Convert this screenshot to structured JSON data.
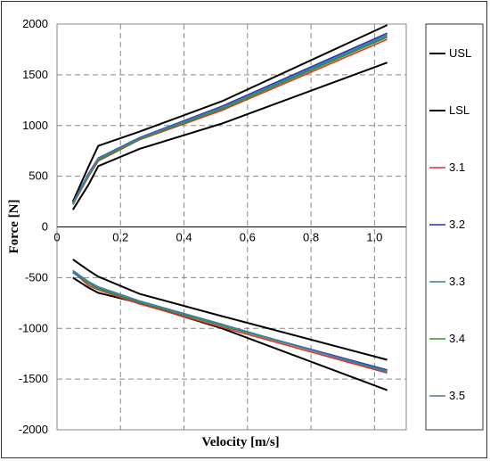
{
  "chart_data": {
    "type": "line",
    "title": "",
    "xlabel": "Velocity [m/s]",
    "ylabel": "Force [N]",
    "xlim": [
      0,
      1.1
    ],
    "ylim": [
      -2000,
      2000
    ],
    "x_ticks": [
      "0",
      "0.2",
      "0.4",
      "0.6",
      "0.8",
      "1.0"
    ],
    "x_tick_values": [
      0,
      0.2,
      0.4,
      0.6,
      0.8,
      1.0
    ],
    "y_ticks": [
      "2000",
      "1500",
      "1000",
      "500",
      "0",
      "-500",
      "-1000",
      "-1500",
      "-2000"
    ],
    "y_tick_values": [
      2000,
      1500,
      1000,
      500,
      0,
      -500,
      -1000,
      -1500,
      -2000
    ],
    "grid": "dashed",
    "legend_position": "right",
    "series": [
      {
        "name": "USL",
        "color": "#000000",
        "rebound": {
          "x": [
            0.05,
            0.1,
            0.13,
            0.26,
            0.52,
            1.04
          ],
          "y": [
            250,
            600,
            800,
            940,
            1240,
            1990
          ]
        },
        "compression": {
          "x": [
            0.05,
            0.1,
            0.13,
            0.26,
            0.52,
            1.04
          ],
          "y": [
            -500,
            -600,
            -650,
            -750,
            -1000,
            -1610
          ]
        }
      },
      {
        "name": "LSL",
        "color": "#000000",
        "rebound": {
          "x": [
            0.05,
            0.1,
            0.13,
            0.26,
            0.52,
            1.04
          ],
          "y": [
            170,
            420,
            600,
            770,
            1020,
            1620
          ]
        },
        "compression": {
          "x": [
            0.05,
            0.1,
            0.13,
            0.26,
            0.52,
            1.04
          ],
          "y": [
            -320,
            -430,
            -490,
            -660,
            -880,
            -1310
          ]
        }
      },
      {
        "name": "3.1",
        "color": "#e03030",
        "rebound": {
          "x": [
            0.05,
            0.1,
            0.13,
            0.26,
            0.52,
            1.04
          ],
          "y": [
            220,
            500,
            650,
            860,
            1150,
            1850
          ]
        },
        "compression": {
          "x": [
            0.05,
            0.1,
            0.13,
            0.26,
            0.52,
            1.04
          ],
          "y": [
            -440,
            -580,
            -620,
            -760,
            -990,
            -1440
          ]
        }
      },
      {
        "name": "3.2",
        "color": "#2030c0",
        "rebound": {
          "x": [
            0.05,
            0.1,
            0.13,
            0.26,
            0.52,
            1.04
          ],
          "y": [
            240,
            530,
            680,
            880,
            1190,
            1910
          ]
        },
        "compression": {
          "x": [
            0.05,
            0.1,
            0.13,
            0.26,
            0.52,
            1.04
          ],
          "y": [
            -450,
            -550,
            -600,
            -740,
            -970,
            -1410
          ]
        }
      },
      {
        "name": "3.3",
        "color": "#2a8a8a",
        "rebound": {
          "x": [
            0.05,
            0.1,
            0.13,
            0.26,
            0.52,
            1.04
          ],
          "y": [
            230,
            520,
            670,
            870,
            1175,
            1880
          ]
        },
        "compression": {
          "x": [
            0.05,
            0.1,
            0.13,
            0.26,
            0.52,
            1.04
          ],
          "y": [
            -430,
            -540,
            -590,
            -730,
            -960,
            -1430
          ]
        }
      },
      {
        "name": "3.4",
        "color": "#2a9a2a",
        "rebound": {
          "x": [
            0.05,
            0.1,
            0.13,
            0.26,
            0.52,
            1.04
          ],
          "y": [
            225,
            510,
            660,
            865,
            1165,
            1870
          ]
        },
        "compression": {
          "x": [
            0.05,
            0.1,
            0.13,
            0.26,
            0.52,
            1.04
          ],
          "y": [
            -440,
            -560,
            -610,
            -745,
            -975,
            -1420
          ]
        }
      },
      {
        "name": "3.5",
        "color": "#4a7aa8",
        "rebound": {
          "x": [
            0.05,
            0.1,
            0.13,
            0.26,
            0.52,
            1.04
          ],
          "y": [
            235,
            525,
            675,
            875,
            1180,
            1895
          ]
        },
        "compression": {
          "x": [
            0.05,
            0.1,
            0.13,
            0.26,
            0.52,
            1.04
          ],
          "y": [
            -445,
            -545,
            -595,
            -735,
            -965,
            -1425
          ]
        }
      }
    ]
  }
}
